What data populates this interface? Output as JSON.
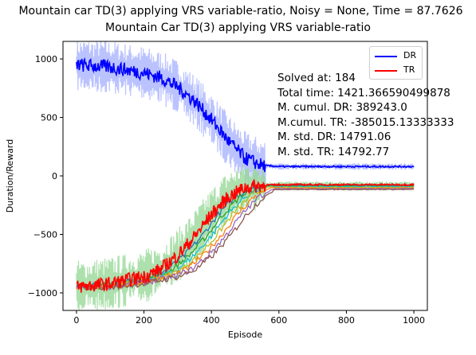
{
  "chart_data": {
    "type": "line",
    "suptitle": "Mountain car TD(3) applying VRS variable-ratio, Noisy = None, Time = 87.7626",
    "title": "Mountain Car TD(3) applying VRS variable-ratio",
    "xlabel": "Episode",
    "ylabel": "Duration/Reward",
    "xlim": [
      -40,
      1040
    ],
    "ylim": [
      -1150,
      1150
    ],
    "xticks": [
      "0",
      "200",
      "400",
      "600",
      "800",
      "1000"
    ],
    "yticks": [
      "1000",
      "500",
      "0",
      "-500",
      "-1000"
    ],
    "legend_position": "top-right",
    "series": [
      {
        "name": "DR",
        "color": "#0000ff",
        "x": [
          0,
          100,
          200,
          250,
          300,
          350,
          400,
          450,
          500,
          550,
          600,
          700,
          800,
          900,
          1000
        ],
        "values": [
          950,
          930,
          880,
          840,
          760,
          640,
          480,
          300,
          150,
          90,
          80,
          80,
          80,
          80,
          80
        ]
      },
      {
        "name": "TR",
        "color": "#ff0000",
        "x": [
          0,
          100,
          200,
          250,
          300,
          350,
          400,
          450,
          500,
          550,
          600,
          700,
          800,
          900,
          1000
        ],
        "values": [
          -950,
          -920,
          -860,
          -800,
          -680,
          -520,
          -330,
          -180,
          -100,
          -80,
          -75,
          -75,
          -75,
          -75,
          -75
        ]
      }
    ],
    "extra_lines_colors": [
      "#1f77b4",
      "#2ca02c",
      "#17becf",
      "#bcbd22",
      "#ff7f0e",
      "#9467bd",
      "#8c564b"
    ],
    "dr_band_color": "#aab4ff",
    "tr_band_color": "#98d898"
  },
  "info": {
    "solved": "Solved at: 184",
    "total_time": "Total time: 1421.366590499878",
    "cumul_dr": "M. cumul. DR: 389243.0",
    "cumul_tr": "M.cumul. TR: -385015.13333333",
    "std_dr": "M. std. DR: 14791.06",
    "std_tr": "M. std. TR: 14792.77"
  },
  "legend": {
    "dr": "DR",
    "tr": "TR"
  }
}
